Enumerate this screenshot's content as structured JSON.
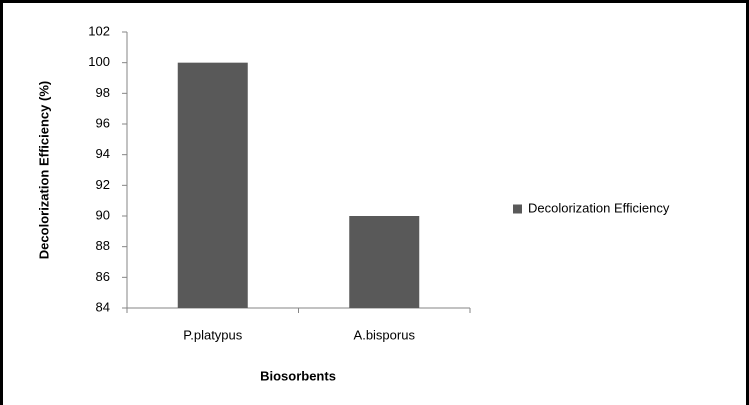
{
  "chart_data": {
    "type": "bar",
    "categories": [
      "P.platypus",
      "A.bisporus"
    ],
    "series": [
      {
        "name": "Decolorization Efficiency",
        "color": "#595959",
        "values": [
          100,
          90
        ]
      }
    ],
    "x_label": "Biosorbents",
    "y_label": "Decolorization Efficiency (%)",
    "ylim": [
      84,
      102
    ],
    "yticks": [
      84,
      86,
      88,
      90,
      92,
      94,
      96,
      98,
      100,
      102
    ],
    "grid": false,
    "legend": "right"
  }
}
